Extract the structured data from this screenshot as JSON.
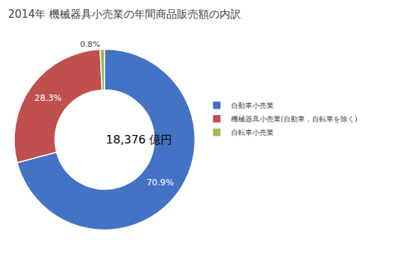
{
  "chart_data": {
    "type": "donut",
    "title": "2014年 機械器具小売業の年間商品販売額の内訳",
    "annotations": [
      "18,376 億円"
    ],
    "categories": [
      "自動車小売業",
      "機械器具小売業(自動車，自転車を除く)",
      "自転車小売業"
    ],
    "values": [
      70.9,
      28.3,
      0.8
    ],
    "value_labels": [
      "70.9%",
      "28.3%",
      "0.8%"
    ],
    "data_labels": true,
    "colors": [
      "#4472C4",
      "#C0504D",
      "#9BBB59"
    ],
    "legend": "right"
  }
}
